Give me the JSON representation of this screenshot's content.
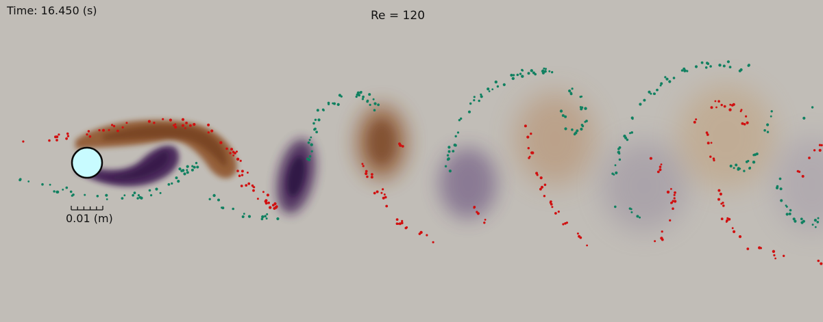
{
  "overlay": {
    "time_text": "Time: 16.450 (s)",
    "reynolds_text": "Re = 120",
    "scale_text": "0.01 (m)"
  },
  "colors": {
    "background": "#c1bdb7",
    "positive_vorticity": "#8a4a1c",
    "negative_vorticity": "#3a1650",
    "particle_upper": "#d01010",
    "particle_lower": "#108060",
    "cylinder_fill": "#c8fbff",
    "cylinder_stroke": "#0a0a0a"
  },
  "icons": {
    "cylinder": "circle-cylinder",
    "scale_bar": "ruler-scale-bar"
  }
}
